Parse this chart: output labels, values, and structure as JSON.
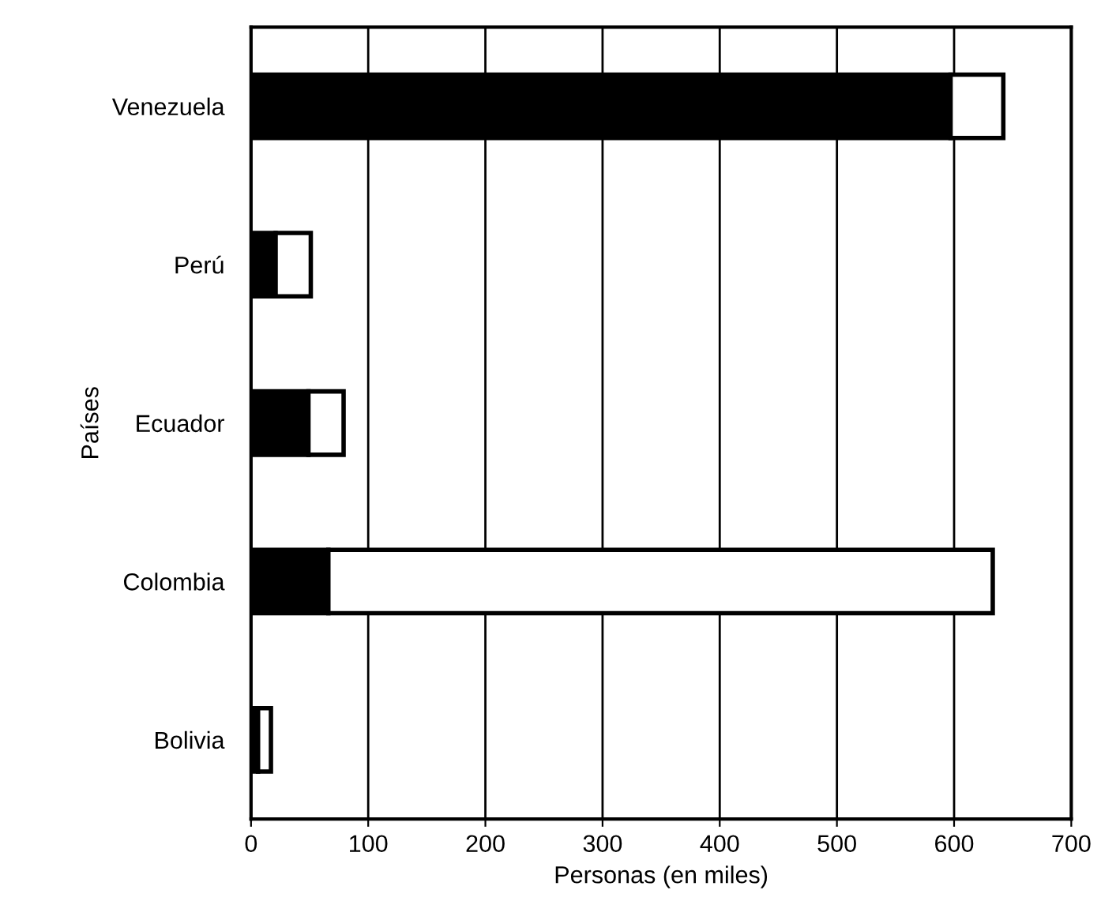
{
  "chart_data": {
    "type": "bar",
    "orientation": "horizontal",
    "stacked": true,
    "xlabel": "Personas (en miles)",
    "ylabel": "Países",
    "categories": [
      "Venezuela",
      "Perú",
      "Ecuador",
      "Colombia",
      "Bolivia"
    ],
    "series": [
      {
        "color": "#000000",
        "values": [
          597,
          21,
          49,
          66,
          6
        ]
      },
      {
        "color": "#ffffff",
        "values": [
          45,
          30,
          30,
          567,
          11
        ]
      }
    ],
    "xlim": [
      0,
      700
    ],
    "xticks": [
      0,
      100,
      200,
      300,
      400,
      500,
      600,
      700
    ],
    "grid": "x"
  }
}
